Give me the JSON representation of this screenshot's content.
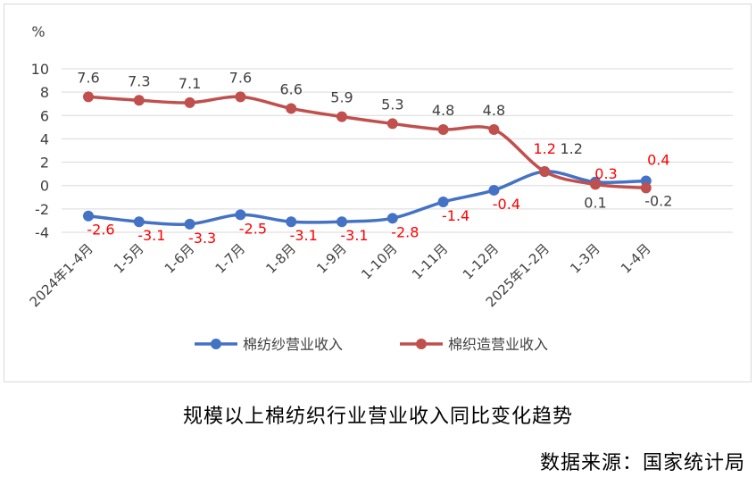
{
  "chart_data": {
    "type": "line",
    "unit_label": "%",
    "categories": [
      "2024年1-4月",
      "1-5月",
      "1-6月",
      "1-7月",
      "1-8月",
      "1-9月",
      "1-10月",
      "1-11月",
      "1-12月",
      "2025年1-2月",
      "1-3月",
      "1-4月"
    ],
    "ylim": [
      -4,
      10
    ],
    "yticks": [
      -4,
      -2,
      0,
      2,
      4,
      6,
      8,
      10
    ],
    "grid": true,
    "legend_position": "bottom",
    "series": [
      {
        "name": "棉纺纱营业收入",
        "color": "#4472c4",
        "label_color": "#ff0000",
        "values": [
          -2.6,
          -3.1,
          -3.3,
          -2.5,
          -3.1,
          -3.1,
          -2.8,
          -1.4,
          -0.4,
          1.2,
          0.3,
          0.4
        ],
        "labels": [
          "-2.6",
          "-3.1",
          "-3.3",
          "-2.5",
          "-3.1",
          "-3.1",
          "-2.8",
          "-1.4",
          "-0.4",
          "1.2",
          "0.3",
          "0.4"
        ]
      },
      {
        "name": "棉织造营业收入",
        "color": "#c0504d",
        "label_color": "#404040",
        "values": [
          7.6,
          7.3,
          7.1,
          7.6,
          6.6,
          5.9,
          5.3,
          4.8,
          4.8,
          1.2,
          0.1,
          -0.2
        ],
        "labels": [
          "7.6",
          "7.3",
          "7.1",
          "7.6",
          "6.6",
          "5.9",
          "5.3",
          "4.8",
          "4.8",
          "1.2",
          "0.1",
          "-0.2"
        ]
      }
    ]
  },
  "caption": {
    "title": "规模以上棉纺织行业营业收入同比变化趋势",
    "source": "数据来源：国家统计局"
  }
}
